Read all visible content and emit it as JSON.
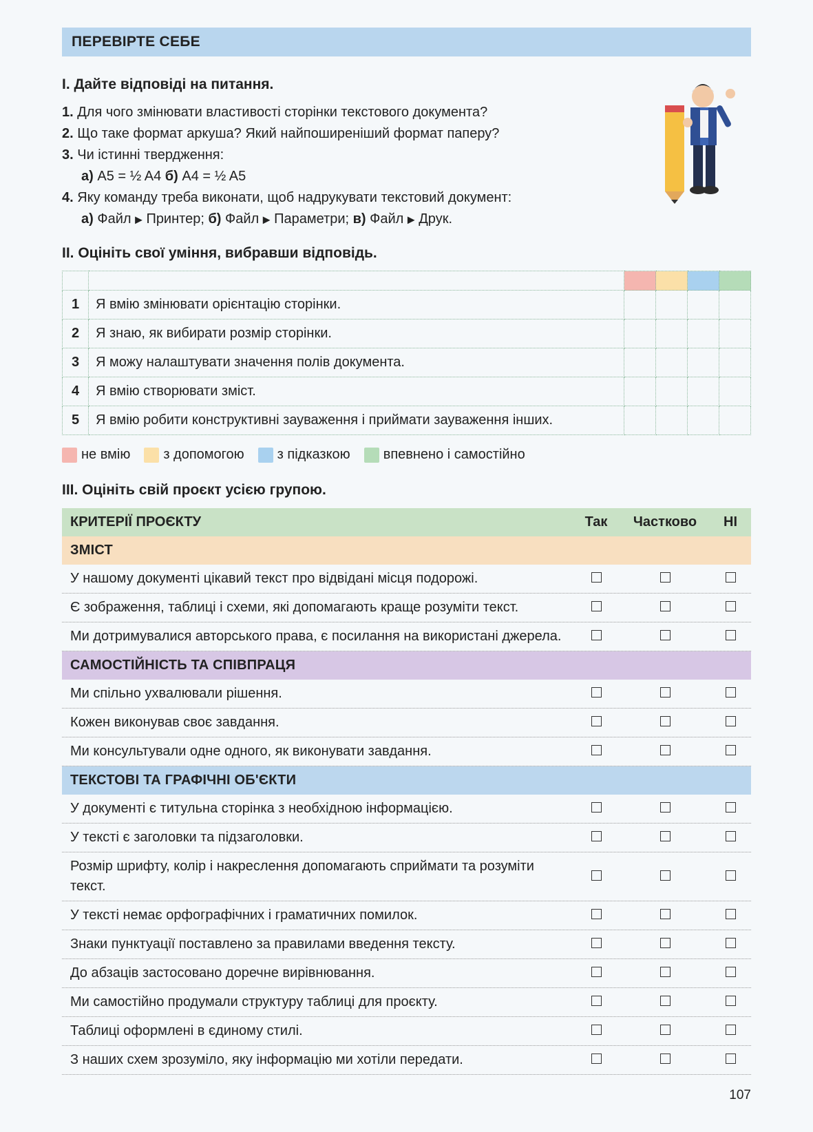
{
  "banner": "ПЕРЕВІРТЕ СЕБЕ",
  "section1_title": "I. Дайте відповіді на питання.",
  "q1": {
    "num": "1.",
    "text": "Для чого змінювати властивості сторінки текстового документа?"
  },
  "q2": {
    "num": "2.",
    "text": "Що таке формат аркуша? Який найпоширеніший формат паперу?"
  },
  "q3": {
    "num": "3.",
    "text": "Чи істинні твердження:",
    "a_label": "а)",
    "a_text": "A5 = ½ A4",
    "b_label": "б)",
    "b_text": "A4 = ½ A5"
  },
  "q4": {
    "num": "4.",
    "text": "Яку команду треба виконати, щоб надрукувати текстовий документ:",
    "a_label": "а)",
    "a1": "Файл",
    "a2": "Принтер;",
    "b_label": "б)",
    "b1": "Файл",
    "b2": "Параметри;",
    "c_label": "в)",
    "c1": "Файл",
    "c2": "Друк."
  },
  "section2_title": "II. Оцініть свої уміння, вибравши відповідь.",
  "skills": [
    {
      "n": "1",
      "t": "Я вмію змінювати орієнтацію сторінки."
    },
    {
      "n": "2",
      "t": "Я знаю, як вибирати розмір сторінки."
    },
    {
      "n": "3",
      "t": "Я можу налаштувати значення полів документа."
    },
    {
      "n": "4",
      "t": "Я вмію створювати зміст."
    },
    {
      "n": "5",
      "t": "Я вмію робити конструктивні зауваження і приймати зауваження інших."
    }
  ],
  "legend": {
    "pink": "не вмію",
    "yellow": "з допомогою",
    "blue": "з підказкою",
    "green": "впевнено і самостійно"
  },
  "colors": {
    "pink": "#f5b6b0",
    "yellow": "#fbe0a8",
    "blue": "#a9d1ef",
    "green": "#b5dcb8",
    "banner": "#b9d6ee",
    "crit_head": "#c9e2c6",
    "sh_or": "#f8dfc0",
    "sh_pu": "#d7c7e5",
    "sh_bl": "#bcd7ee"
  },
  "section3_title": "III. Оцініть свій проєкт усією групою.",
  "crit_header": {
    "title": "КРИТЕРІЇ ПРОЄКТУ",
    "c1": "Так",
    "c2": "Частково",
    "c3": "НІ"
  },
  "groups": [
    {
      "title": "ЗМІСТ",
      "cls": "sh-or",
      "rows": [
        "У нашому документі цікавий текст про відвідані місця подорожі.",
        "Є зображення, таблиці і схеми, які допомагають краще розуміти текст.",
        "Ми дотримувалися авторського права, є посилання на використані джерела."
      ]
    },
    {
      "title": "САМОСТІЙНІСТЬ ТА СПІВПРАЦЯ",
      "cls": "sh-pu",
      "rows": [
        "Ми спільно ухвалювали рішення.",
        "Кожен виконував своє завдання.",
        "Ми консультували одне одного, як виконувати завдання."
      ]
    },
    {
      "title": "ТЕКСТОВІ ТА ГРАФІЧНІ ОБ'ЄКТИ",
      "cls": "sh-bl",
      "rows": [
        "У документі є титульна сторінка з необхідною інформацією.",
        "У тексті є заголовки та підзаголовки.",
        "Розмір шрифту, колір і накреслення допомагають сприймати та розуміти текст.",
        "У тексті немає орфографічних і граматичних помилок.",
        "Знаки пунктуації поставлено за правилами введення тексту.",
        "До абзаців застосовано доречне вирівнювання.",
        "Ми самостійно продумали структуру таблиці для проєкту.",
        "Таблиці оформлені в єдиному стилі.",
        "З наших схем зрозуміло, яку інформацію ми хотіли передати."
      ]
    }
  ],
  "page_number": "107"
}
